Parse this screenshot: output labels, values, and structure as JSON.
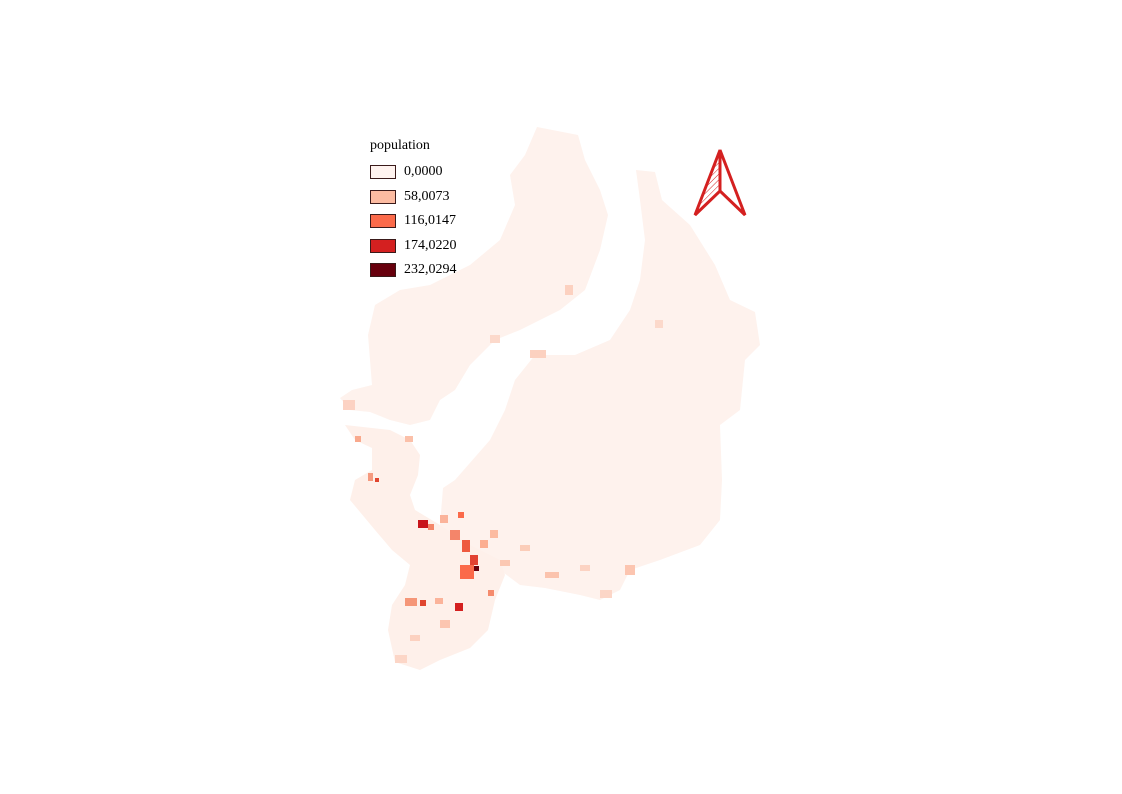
{
  "map": {
    "legend": {
      "title": "population",
      "items": [
        {
          "label": "0,0000",
          "color": "#fff3ef"
        },
        {
          "label": "58,0073",
          "color": "#fcbba1"
        },
        {
          "label": "116,0147",
          "color": "#fb6a4a"
        },
        {
          "label": "174,0220",
          "color": "#d42020"
        },
        {
          "label": "232,0294",
          "color": "#67000d"
        }
      ]
    },
    "base_fill": "#fef1ec",
    "north_arrow_color": "#d42020",
    "north_arrow_icon": "north-arrow-icon"
  }
}
